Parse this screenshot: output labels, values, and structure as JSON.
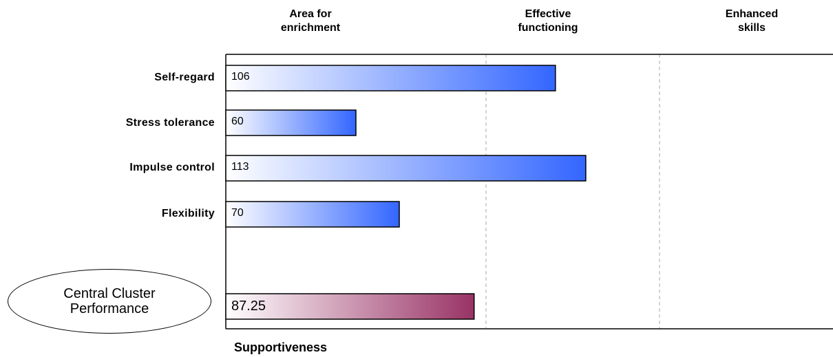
{
  "chart_data": {
    "type": "bar",
    "orientation": "horizontal",
    "zones": [
      {
        "label": "Area for enrichment",
        "lines": [
          "Area for",
          "enrichment"
        ]
      },
      {
        "label": "Effective functioning",
        "lines": [
          "Effective",
          "functioning"
        ]
      },
      {
        "label": "Enhanced skills",
        "lines": [
          "Enhanced",
          "skills"
        ]
      }
    ],
    "zone_boundaries": [
      90,
      130
    ],
    "xlim": [
      30,
      170
    ],
    "categories": [
      "Self-regard",
      "Stress tolerance",
      "Impulse control",
      "Flexibility"
    ],
    "values": [
      106,
      60,
      113,
      70
    ],
    "value_labels": [
      "106",
      "60",
      "113",
      "70"
    ],
    "summary": {
      "label_lines": [
        "Central Cluster",
        "Performance"
      ],
      "value": 87.25,
      "value_label": "87.25"
    },
    "footer_title": "Supportiveness",
    "gridlines": "dashed vertical at zone boundaries",
    "colors": {
      "bar_start": "#ffffff",
      "bar_end": "#3366ff",
      "summary_start": "#ffffff",
      "summary_end": "#993366",
      "grid": "#aaaaaa"
    }
  }
}
